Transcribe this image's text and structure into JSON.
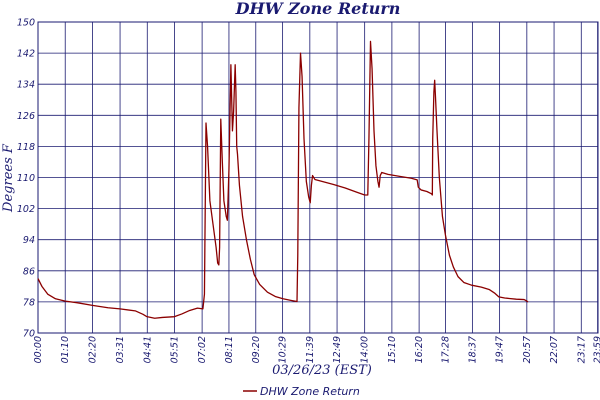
{
  "chart_data": {
    "type": "line",
    "title": "DHW Zone Return",
    "xlabel": "03/26/23 (EST)",
    "ylabel": "Degrees F",
    "ylim": [
      70,
      150
    ],
    "yticks": [
      70,
      78,
      86,
      94,
      102,
      110,
      118,
      126,
      134,
      142,
      150
    ],
    "grid": true,
    "legend_position": "bottom-center",
    "x_tick_labels": [
      "00:00",
      "01:10",
      "02:20",
      "03:31",
      "04:41",
      "05:51",
      "07:02",
      "08:11",
      "09:20",
      "10:29",
      "11:39",
      "12:49",
      "14:00",
      "15:10",
      "16:20",
      "17:28",
      "18:37",
      "19:47",
      "20:57",
      "22:07",
      "23:17",
      "23:59"
    ],
    "x_tick_minutes": [
      0,
      70,
      140,
      211,
      281,
      351,
      422,
      491,
      560,
      629,
      699,
      769,
      840,
      910,
      980,
      1048,
      1117,
      1187,
      1257,
      1327,
      1397,
      1439
    ],
    "x_range_minutes": [
      0,
      1440
    ],
    "series": [
      {
        "name": "DHW Zone Return",
        "color": "#8b0000",
        "points": [
          [
            0,
            84
          ],
          [
            10,
            82
          ],
          [
            25,
            80
          ],
          [
            45,
            78.8
          ],
          [
            70,
            78.2
          ],
          [
            100,
            77.8
          ],
          [
            140,
            77.1
          ],
          [
            180,
            76.5
          ],
          [
            211,
            76.2
          ],
          [
            250,
            75.7
          ],
          [
            270,
            74.8
          ],
          [
            280,
            74.2
          ],
          [
            300,
            73.8
          ],
          [
            320,
            74
          ],
          [
            351,
            74.2
          ],
          [
            370,
            74.9
          ],
          [
            390,
            75.8
          ],
          [
            410,
            76.4
          ],
          [
            424,
            76.2
          ],
          [
            428,
            80
          ],
          [
            432,
            124
          ],
          [
            436,
            118
          ],
          [
            442,
            104
          ],
          [
            450,
            98
          ],
          [
            458,
            92
          ],
          [
            462,
            88
          ],
          [
            465,
            87.5
          ],
          [
            467,
            92
          ],
          [
            470,
            125
          ],
          [
            474,
            114
          ],
          [
            478,
            104
          ],
          [
            484,
            100
          ],
          [
            487,
            99
          ],
          [
            491,
            112
          ],
          [
            496,
            139
          ],
          [
            500,
            122
          ],
          [
            503,
            127
          ],
          [
            507,
            139
          ],
          [
            509,
            132
          ],
          [
            511,
            118
          ],
          [
            513,
            116
          ],
          [
            518,
            108
          ],
          [
            526,
            100
          ],
          [
            536,
            94
          ],
          [
            546,
            89
          ],
          [
            556,
            85
          ],
          [
            570,
            82.5
          ],
          [
            590,
            80.5
          ],
          [
            610,
            79.4
          ],
          [
            630,
            78.8
          ],
          [
            650,
            78.4
          ],
          [
            666,
            78.1
          ],
          [
            668,
            90
          ],
          [
            671,
            128
          ],
          [
            675,
            142
          ],
          [
            679,
            136
          ],
          [
            684,
            120
          ],
          [
            690,
            109
          ],
          [
            696,
            105
          ],
          [
            700,
            103.5
          ],
          [
            703,
            108
          ],
          [
            706,
            110.5
          ],
          [
            712,
            109.5
          ],
          [
            730,
            109
          ],
          [
            760,
            108.2
          ],
          [
            790,
            107.3
          ],
          [
            820,
            106.2
          ],
          [
            840,
            105.5
          ],
          [
            848,
            105.5
          ],
          [
            851,
            120
          ],
          [
            855,
            145
          ],
          [
            859,
            138
          ],
          [
            864,
            122
          ],
          [
            869,
            113
          ],
          [
            874,
            109
          ],
          [
            877,
            107.5
          ],
          [
            880,
            110.5
          ],
          [
            884,
            111.3
          ],
          [
            900,
            110.8
          ],
          [
            930,
            110.3
          ],
          [
            960,
            109.8
          ],
          [
            975,
            109.4
          ],
          [
            978,
            107.5
          ],
          [
            985,
            106.8
          ],
          [
            1000,
            106.4
          ],
          [
            1012,
            105.8
          ],
          [
            1014,
            105.5
          ],
          [
            1015,
            120
          ],
          [
            1018,
            132
          ],
          [
            1020,
            135
          ],
          [
            1022,
            131
          ],
          [
            1026,
            122
          ],
          [
            1032,
            110
          ],
          [
            1040,
            100
          ],
          [
            1048,
            95
          ],
          [
            1058,
            90
          ],
          [
            1068,
            87
          ],
          [
            1080,
            84.5
          ],
          [
            1095,
            83
          ],
          [
            1115,
            82.3
          ],
          [
            1140,
            81.8
          ],
          [
            1160,
            81.2
          ],
          [
            1175,
            80.2
          ],
          [
            1185,
            79.3
          ],
          [
            1200,
            79
          ],
          [
            1230,
            78.7
          ],
          [
            1250,
            78.6
          ],
          [
            1257,
            78.2
          ],
          [
            1260,
            78
          ]
        ]
      }
    ]
  }
}
